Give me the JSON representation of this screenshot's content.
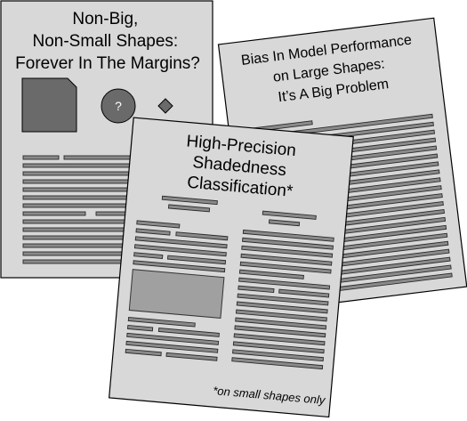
{
  "papers": {
    "left": {
      "title_lines": [
        "Non-Big,",
        "Non-Small Shapes:",
        "Forever In The Margins?"
      ],
      "question_mark": "?"
    },
    "right": {
      "title_lines": [
        "Bias In Model Performance",
        "on Large Shapes:",
        "It’s A Big Problem"
      ]
    },
    "front": {
      "title_lines": [
        "High-Precision",
        "Shadedness",
        "Classification*"
      ],
      "footnote": "*on small shapes only"
    }
  },
  "colors": {
    "page": "#d8d8d8",
    "bar": "#8a8a8a",
    "dark_shape": "#6a6a6a",
    "outline": "#000000"
  },
  "icons": [
    "pentagon-shape-icon",
    "question-circle-icon",
    "diamond-icon"
  ]
}
